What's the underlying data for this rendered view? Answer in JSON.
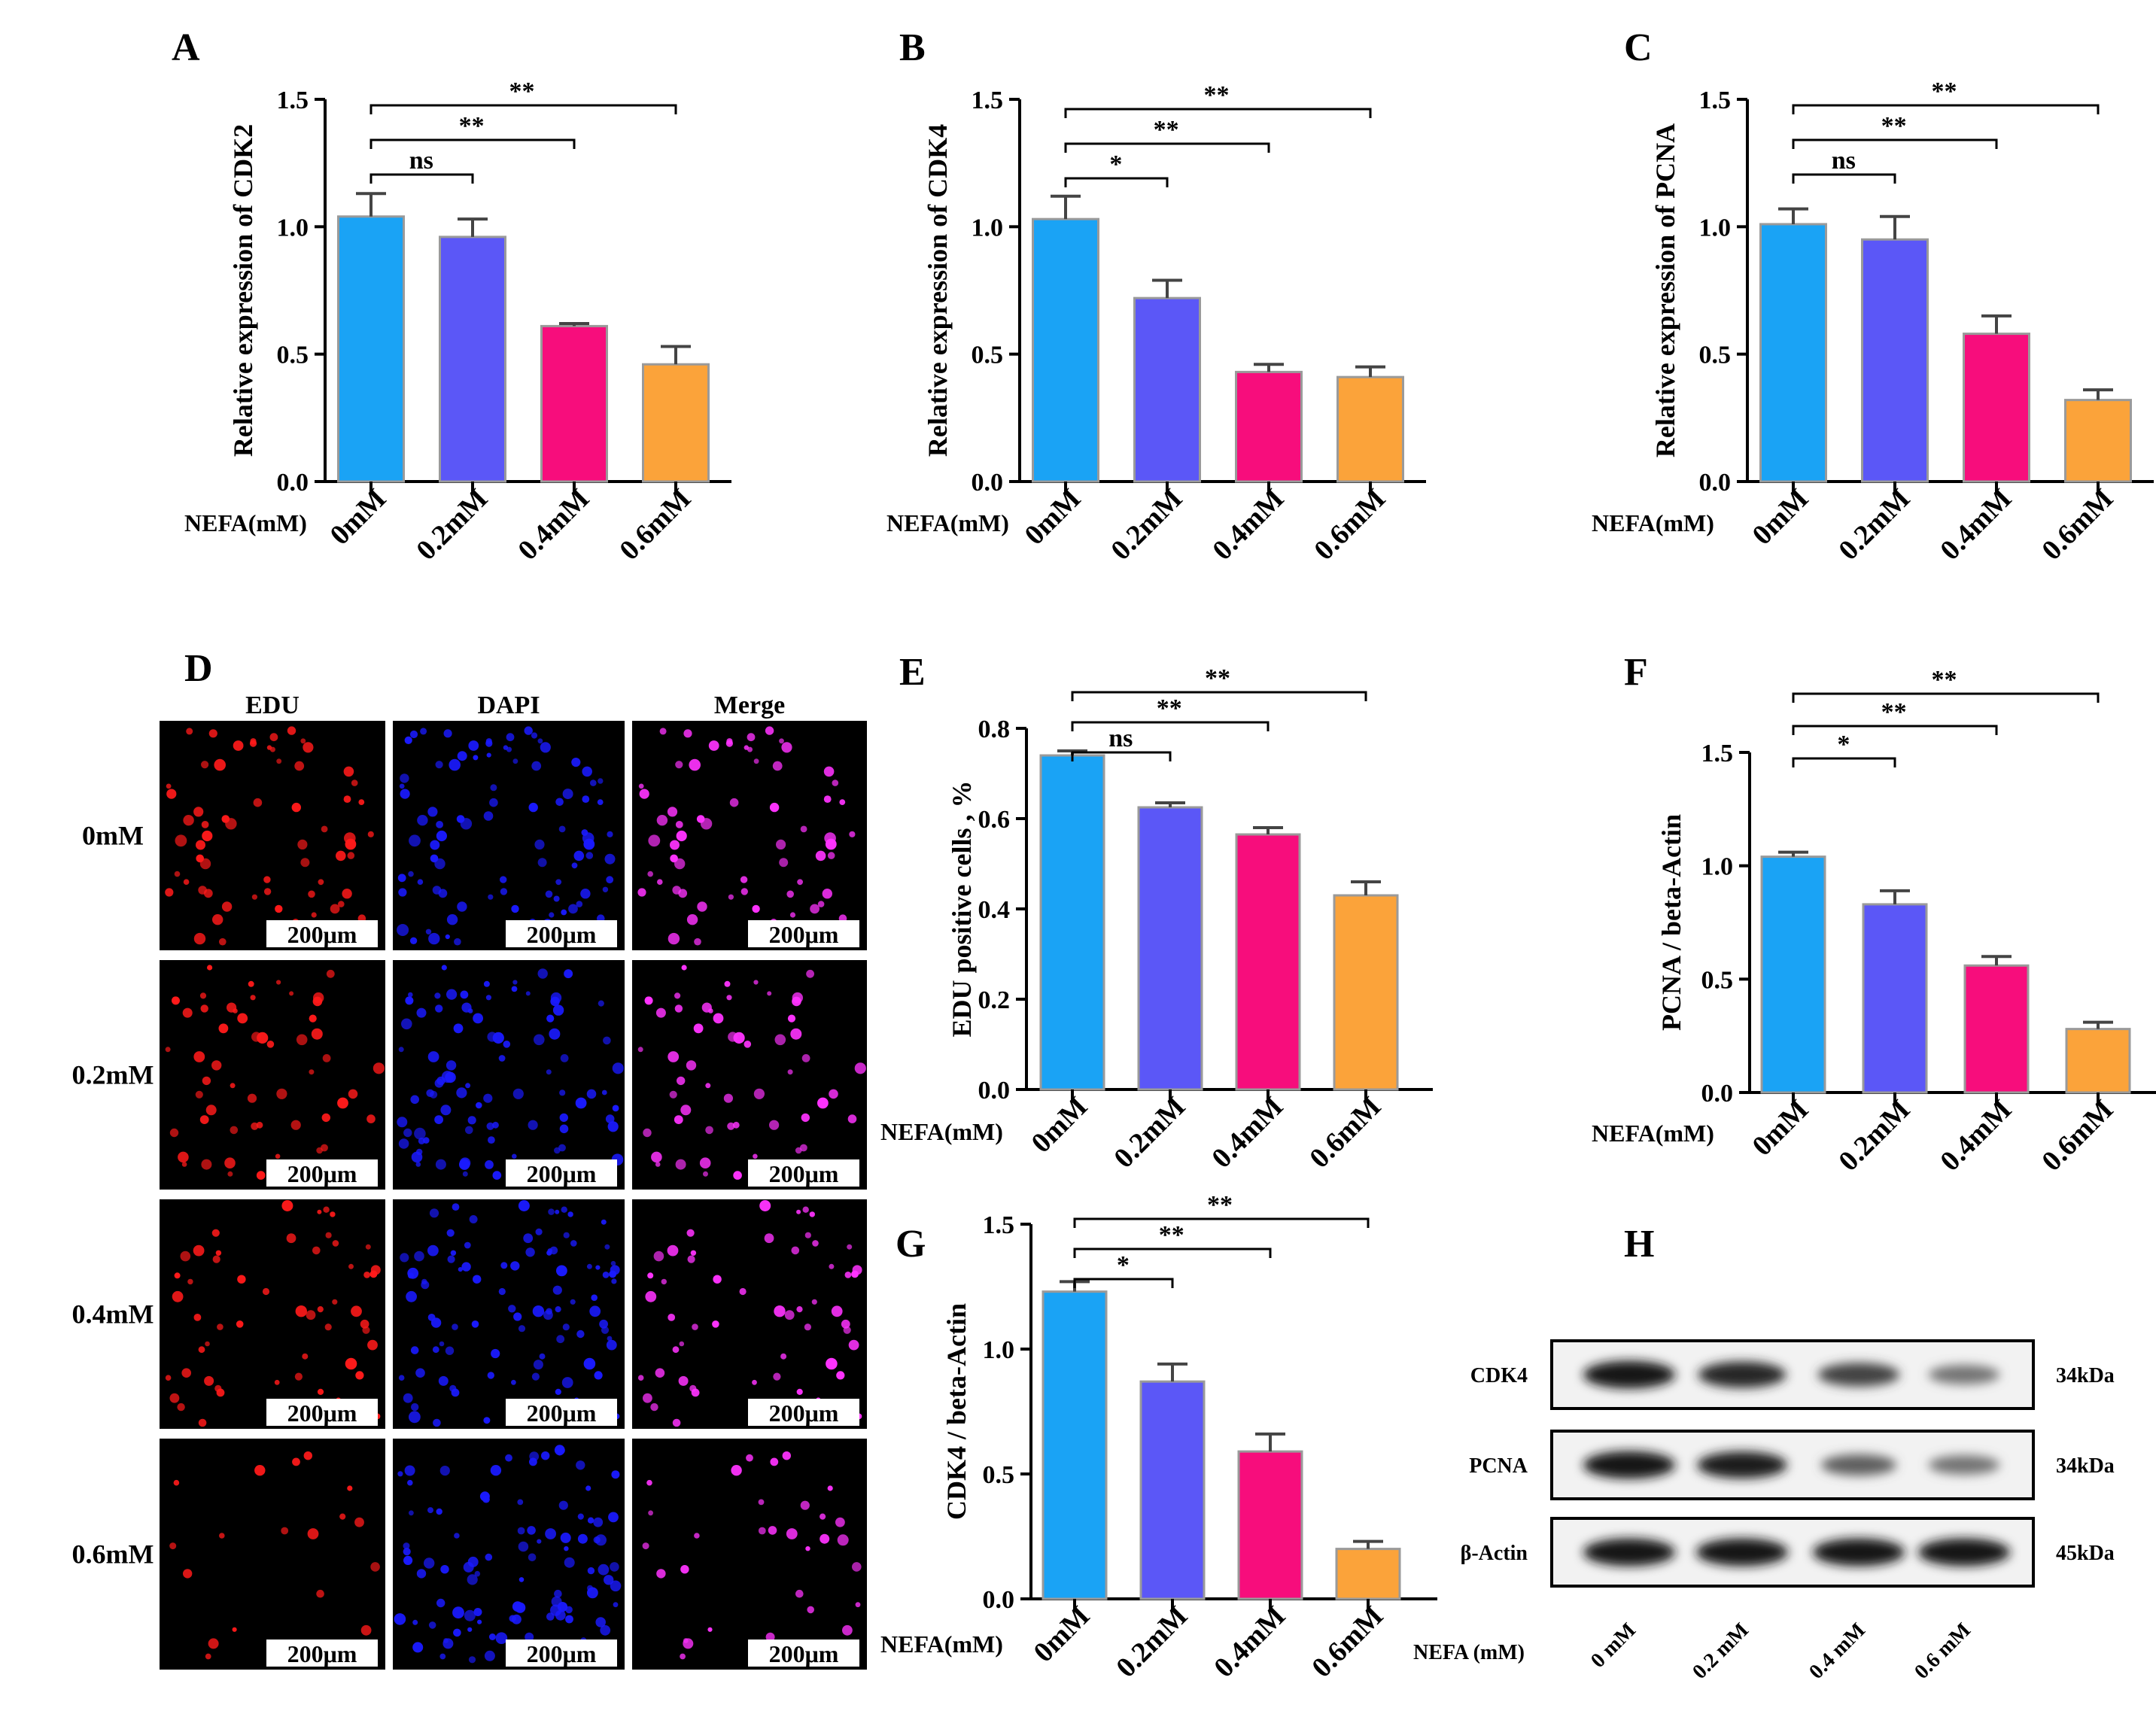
{
  "chart_data": [
    {
      "panel": "A",
      "type": "bar",
      "categories": [
        "0mM",
        "0.2mM",
        "0.4mM",
        "0.6mM"
      ],
      "values": [
        1.04,
        0.96,
        0.61,
        0.46
      ],
      "errors": [
        0.09,
        0.07,
        0.01,
        0.07
      ],
      "colors": [
        "#1aa3f5",
        "#5b57f7",
        "#f70d7c",
        "#fba33a"
      ],
      "ylabel": "Relative  expression of CDK2",
      "xlabel": "NEFA(mM)",
      "yticks": [
        "0.0",
        "0.5",
        "1.0",
        "1.5"
      ],
      "ylim": [
        0,
        1.5
      ],
      "significance": [
        {
          "from": 0,
          "to": 1,
          "label": "ns"
        },
        {
          "from": 0,
          "to": 2,
          "label": "**"
        },
        {
          "from": 0,
          "to": 3,
          "label": "**"
        }
      ]
    },
    {
      "panel": "B",
      "type": "bar",
      "categories": [
        "0mM",
        "0.2mM",
        "0.4mM",
        "0.6mM"
      ],
      "values": [
        1.03,
        0.72,
        0.43,
        0.41
      ],
      "errors": [
        0.09,
        0.07,
        0.03,
        0.04
      ],
      "colors": [
        "#1aa3f5",
        "#5b57f7",
        "#f70d7c",
        "#fba33a"
      ],
      "ylabel": "Relative  expression of CDK4",
      "xlabel": "NEFA(mM)",
      "yticks": [
        "0.0",
        "0.5",
        "1.0",
        "1.5"
      ],
      "ylim": [
        0,
        1.5
      ],
      "significance": [
        {
          "from": 0,
          "to": 1,
          "label": "*"
        },
        {
          "from": 0,
          "to": 2,
          "label": "**"
        },
        {
          "from": 0,
          "to": 3,
          "label": "**"
        }
      ]
    },
    {
      "panel": "C",
      "type": "bar",
      "categories": [
        "0mM",
        "0.2mM",
        "0.4mM",
        "0.6mM"
      ],
      "values": [
        1.01,
        0.95,
        0.58,
        0.32
      ],
      "errors": [
        0.06,
        0.09,
        0.07,
        0.04
      ],
      "colors": [
        "#1aa3f5",
        "#5b57f7",
        "#f70d7c",
        "#fba33a"
      ],
      "ylabel": "Relative  expression of PCNA",
      "xlabel": "NEFA(mM)",
      "yticks": [
        "0.0",
        "0.5",
        "1.0",
        "1.5"
      ],
      "ylim": [
        0,
        1.5
      ],
      "significance": [
        {
          "from": 0,
          "to": 1,
          "label": "ns"
        },
        {
          "from": 0,
          "to": 2,
          "label": "**"
        },
        {
          "from": 0,
          "to": 3,
          "label": "**"
        }
      ]
    },
    {
      "panel": "E",
      "type": "bar",
      "categories": [
        "0mM",
        "0.2mM",
        "0.4mM",
        "0.6mM"
      ],
      "values": [
        0.74,
        0.625,
        0.565,
        0.43
      ],
      "errors": [
        0.01,
        0.01,
        0.015,
        0.03
      ],
      "colors": [
        "#1aa3f5",
        "#5b57f7",
        "#f70d7c",
        "#fba33a"
      ],
      "ylabel": "EDU positive cells , %",
      "xlabel": "NEFA(mM)",
      "yticks": [
        "0.0",
        "0.2",
        "0.4",
        "0.6",
        "0.8"
      ],
      "ylim": [
        0,
        0.8
      ],
      "significance": [
        {
          "from": 0,
          "to": 1,
          "label": "ns"
        },
        {
          "from": 0,
          "to": 2,
          "label": "**"
        },
        {
          "from": 0,
          "to": 3,
          "label": "**"
        }
      ]
    },
    {
      "panel": "F",
      "type": "bar",
      "categories": [
        "0mM",
        "0.2mM",
        "0.4mM",
        "0.6mM"
      ],
      "values": [
        1.04,
        0.83,
        0.56,
        0.28
      ],
      "errors": [
        0.02,
        0.06,
        0.04,
        0.03
      ],
      "colors": [
        "#1aa3f5",
        "#5b57f7",
        "#f70d7c",
        "#fba33a"
      ],
      "ylabel": "PCNA / beta-Actin",
      "xlabel": "NEFA(mM)",
      "yticks": [
        "0.0",
        "0.5",
        "1.0",
        "1.5"
      ],
      "ylim": [
        0,
        1.5
      ],
      "significance": [
        {
          "from": 0,
          "to": 1,
          "label": "*"
        },
        {
          "from": 0,
          "to": 2,
          "label": "**"
        },
        {
          "from": 0,
          "to": 3,
          "label": "**"
        }
      ]
    },
    {
      "panel": "G",
      "type": "bar",
      "categories": [
        "0mM",
        "0.2mM",
        "0.4mM",
        "0.6mM"
      ],
      "values": [
        1.23,
        0.87,
        0.59,
        0.2
      ],
      "errors": [
        0.04,
        0.07,
        0.07,
        0.03
      ],
      "colors": [
        "#1aa3f5",
        "#5b57f7",
        "#f70d7c",
        "#fba33a"
      ],
      "ylabel": "CDK4 / beta-Actin",
      "xlabel": "NEFA(mM)",
      "yticks": [
        "0.0",
        "0.5",
        "1.0",
        "1.5"
      ],
      "ylim": [
        0,
        1.5
      ],
      "significance": [
        {
          "from": 0,
          "to": 1,
          "label": "*"
        },
        {
          "from": 0,
          "to": 2,
          "label": "**"
        },
        {
          "from": 0,
          "to": 3,
          "label": "**"
        }
      ]
    }
  ],
  "microscopy": {
    "letter": "D",
    "columns": [
      "EDU",
      "DAPI",
      "Merge"
    ],
    "rows": [
      "0mM",
      "0.2mM",
      "0.4mM",
      "0.6mM"
    ],
    "scale_bar": "200μm",
    "channel_colors": [
      "#ff1a1a",
      "#1a1aff",
      "#ff33ff"
    ],
    "cell_density": [
      0.75,
      0.65,
      0.6,
      0.2
    ]
  },
  "western_blot": {
    "letter": "H",
    "proteins": [
      {
        "name": "CDK4",
        "size": "34kDa",
        "intensity": [
          0.95,
          0.85,
          0.7,
          0.45
        ]
      },
      {
        "name": "PCNA",
        "size": "34kDa",
        "intensity": [
          0.95,
          0.9,
          0.55,
          0.45
        ]
      },
      {
        "name": "β-Actin",
        "size": "45kDa",
        "intensity": [
          0.95,
          0.95,
          0.95,
          0.95
        ]
      }
    ],
    "lanes": [
      "0 mM",
      "0.2 mM",
      "0.4 mM",
      "0.6 mM"
    ],
    "xlabel": "NEFA (mM)"
  }
}
